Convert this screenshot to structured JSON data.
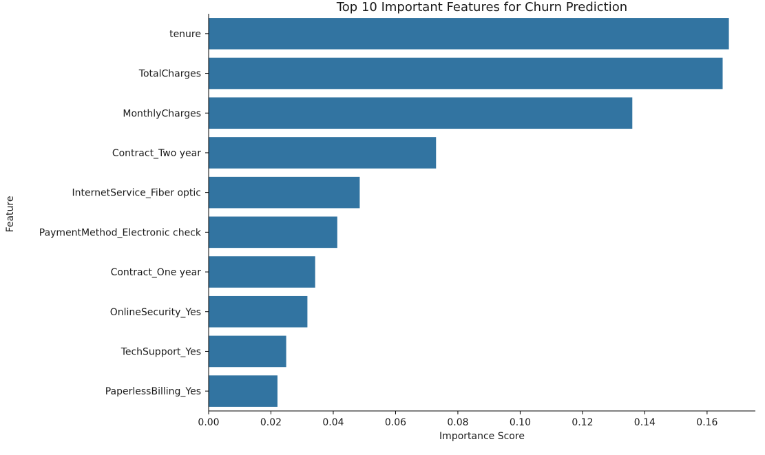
{
  "chart_data": {
    "type": "bar",
    "orientation": "horizontal",
    "title": "Top 10 Important Features for Churn Prediction",
    "xlabel": "Importance Score",
    "ylabel": "Feature",
    "categories": [
      "tenure",
      "TotalCharges",
      "MonthlyCharges",
      "Contract_Two year",
      "InternetService_Fiber optic",
      "PaymentMethod_Electronic check",
      "Contract_One year",
      "OnlineSecurity_Yes",
      "TechSupport_Yes",
      "PaperlessBilling_Yes"
    ],
    "values": [
      0.167,
      0.165,
      0.136,
      0.073,
      0.0485,
      0.0413,
      0.0342,
      0.0317,
      0.0249,
      0.0221
    ],
    "xlim": [
      0,
      0.1755
    ],
    "xticks": [
      0.0,
      0.02,
      0.04,
      0.06,
      0.08,
      0.1,
      0.12,
      0.14,
      0.16
    ],
    "xtick_labels": [
      "0.00",
      "0.02",
      "0.04",
      "0.06",
      "0.08",
      "0.10",
      "0.12",
      "0.14",
      "0.16"
    ],
    "bar_color": "#3274a1",
    "grid": false
  }
}
